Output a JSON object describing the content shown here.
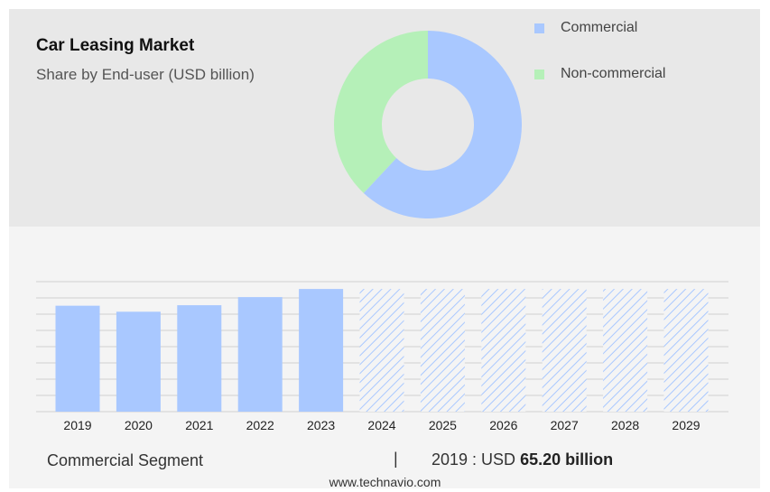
{
  "header": {
    "title": "Car Leasing Market",
    "subtitle": "Share by End-user (USD billion)"
  },
  "legend": [
    {
      "label": "Commercial",
      "color": "#a9c8ff"
    },
    {
      "label": "Non-commercial",
      "color": "#b5f0b8"
    }
  ],
  "chart_data": [
    {
      "type": "pie",
      "variant": "donut",
      "title": "",
      "categories": [
        "Commercial",
        "Non-commercial"
      ],
      "values": [
        62,
        38
      ],
      "colors": [
        "#a9c8ff",
        "#b5f0b8"
      ]
    },
    {
      "type": "bar",
      "title": "",
      "categories": [
        "2019",
        "2020",
        "2021",
        "2022",
        "2023",
        "2024",
        "2025",
        "2026",
        "2027",
        "2028",
        "2029"
      ],
      "values": [
        65.2,
        61.5,
        65.5,
        70.5,
        75.5,
        75.5,
        75.5,
        75.5,
        75.5,
        75.5,
        75.5
      ],
      "forecast_from": "2024",
      "ylim": [
        0,
        80
      ],
      "grid": true,
      "color": "#a9c8ff"
    }
  ],
  "footer": {
    "segment_label": "Commercial Segment",
    "separator": "|",
    "year_value": "2019 : USD",
    "highlight_value": "65.20 billion",
    "source": "www.technavio.com"
  }
}
